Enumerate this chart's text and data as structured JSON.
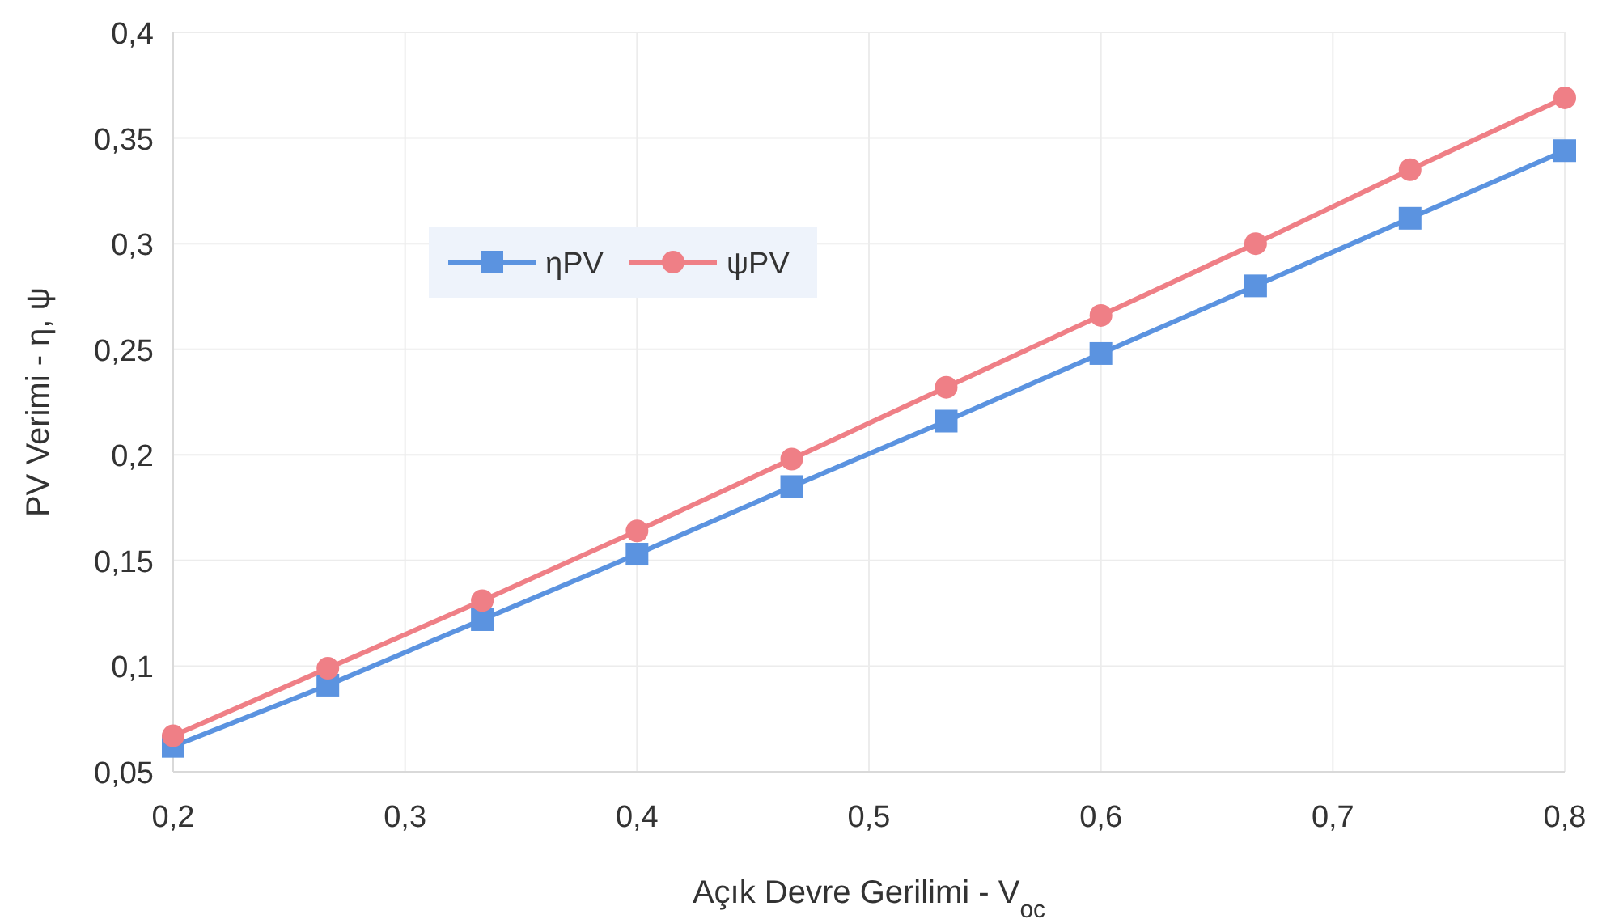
{
  "chart_data": {
    "type": "line",
    "xlabel": "Açık Devre Gerilimi - V$_{oc}$",
    "ylabel": "PV Verimi - η, ψ",
    "x": [
      0.2,
      0.2667,
      0.3333,
      0.4,
      0.4667,
      0.5333,
      0.6,
      0.6667,
      0.7333,
      0.8
    ],
    "series": [
      {
        "name": "ηPV",
        "color": "#5b93e0",
        "marker": "square",
        "values": [
          0.062,
          0.091,
          0.122,
          0.153,
          0.185,
          0.216,
          0.248,
          0.28,
          0.312,
          0.344
        ]
      },
      {
        "name": "ψPV",
        "color": "#ef7f86",
        "marker": "circle",
        "values": [
          0.067,
          0.099,
          0.131,
          0.164,
          0.198,
          0.232,
          0.266,
          0.3,
          0.335,
          0.369
        ]
      }
    ],
    "xlim": [
      0.2,
      0.8
    ],
    "xticks": [
      {
        "value": 0.2,
        "label": "0,2"
      },
      {
        "value": 0.3,
        "label": "0,3"
      },
      {
        "value": 0.4,
        "label": "0,4"
      },
      {
        "value": 0.5,
        "label": "0,5"
      },
      {
        "value": 0.6,
        "label": "0,6"
      },
      {
        "value": 0.7,
        "label": "0,7"
      },
      {
        "value": 0.8,
        "label": "0,8"
      }
    ],
    "ylim": [
      0.05,
      0.4
    ],
    "yticks": [
      {
        "value": 0.05,
        "label": "0,05"
      },
      {
        "value": 0.1,
        "label": "0,1"
      },
      {
        "value": 0.15,
        "label": "0,15"
      },
      {
        "value": 0.2,
        "label": "0,2"
      },
      {
        "value": 0.25,
        "label": "0,25"
      },
      {
        "value": 0.3,
        "label": "0,3"
      },
      {
        "value": 0.35,
        "label": "0,35"
      },
      {
        "value": 0.4,
        "label": "0,4"
      }
    ],
    "grid": true,
    "legend": "top left",
    "line_style": "solid"
  }
}
